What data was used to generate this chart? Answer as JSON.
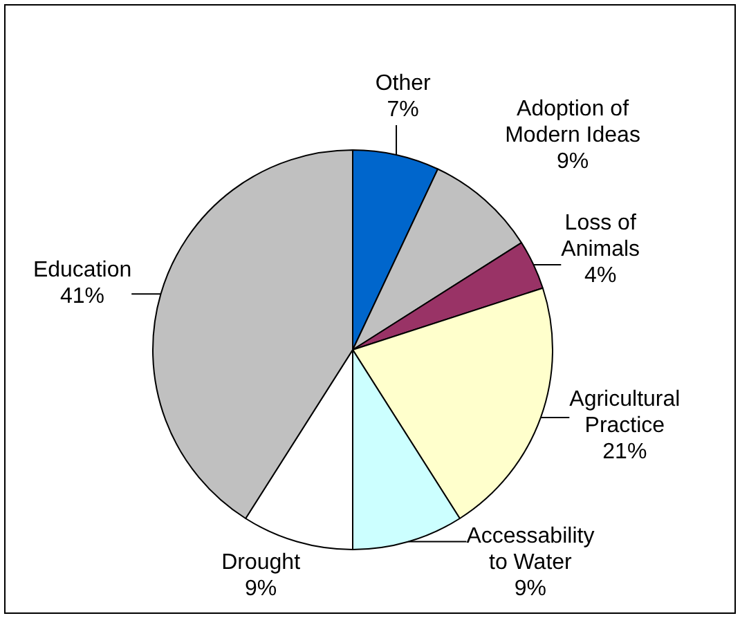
{
  "chart_data": {
    "type": "pie",
    "categories": [
      "Other",
      "Adoption of Modern Ideas",
      "Loss of Animals",
      "Agricultural Practice",
      "Accessability to Water",
      "Drought",
      "Education"
    ],
    "values": [
      7,
      9,
      4,
      21,
      9,
      9,
      41
    ],
    "value_labels": [
      "7%",
      "9%",
      "4%",
      "21%",
      "9%",
      "9%",
      "41%"
    ],
    "colors": [
      "#0066cc",
      "#c0c0c0",
      "#993366",
      "#ffffcc",
      "#ccffff",
      "#ffffff",
      "#c0c0c0"
    ],
    "legend": false
  }
}
